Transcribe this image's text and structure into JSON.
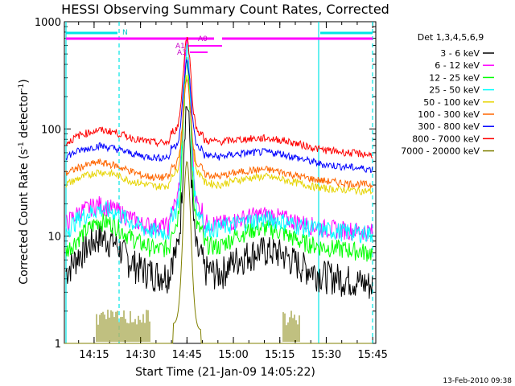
{
  "chart_data": {
    "type": "line",
    "title": "HESSI Observing Summary Count Rates, Corrected",
    "xlabel": "Start Time (21-Jan-09 14:05:22)",
    "ylabel": "Corrected Count Rate (s",
    "ylabel_sup1": "-1",
    "ylabel_mid": " detector",
    "ylabel_sup2": "-1",
    "ylabel_end": ")",
    "ylog": true,
    "ylim": [
      1,
      1000
    ],
    "xlim_minutes": [
      0,
      100.6
    ],
    "x_tick_labels": [
      "14:15",
      "14:30",
      "14:45",
      "15:00",
      "15:15",
      "15:30",
      "15:45"
    ],
    "x_tick_minutes": [
      9.6,
      24.6,
      39.6,
      54.6,
      69.6,
      84.6,
      99.6
    ],
    "y_tick_labels": [
      "1",
      "10",
      "100",
      "1000"
    ],
    "y_tick_values": [
      1,
      10,
      100,
      1000
    ],
    "legend_title": "Det 1,3,4,5,6,9",
    "legend_position": "right",
    "timestamp": "13-Feb-2010 09:38",
    "flags": {
      "n_label": "N",
      "a0_label": "A0",
      "a1_label": "A1",
      "a3_label": "A3"
    },
    "series": [
      {
        "name": "3 - 6 keV",
        "color": "#000000",
        "values": [
          4.5,
          7,
          10,
          9,
          6,
          5,
          4.5,
          4.5,
          170,
          5,
          4.5,
          6,
          7,
          7.5,
          7,
          5.5,
          4.5,
          4,
          3.5
        ]
      },
      {
        "name": "6 - 12 keV",
        "color": "#ff00ff",
        "values": [
          13,
          17,
          20,
          18,
          15,
          13,
          12.5,
          12.5,
          620,
          13.5,
          13,
          14,
          15.5,
          16,
          15,
          13.5,
          12,
          11.5,
          11
        ]
      },
      {
        "name": "12 - 25 keV",
        "color": "#00ff00",
        "values": [
          7,
          10,
          14,
          13,
          10,
          8.5,
          7.5,
          8,
          400,
          8.5,
          8,
          10,
          11.5,
          12,
          11,
          9,
          8,
          7.5,
          7
        ]
      },
      {
        "name": "25 - 50 keV",
        "color": "#00ffff",
        "values": [
          11,
          15,
          18,
          17,
          14,
          12,
          11,
          11,
          560,
          12,
          12,
          13,
          14,
          14.5,
          14,
          12.5,
          11.5,
          11,
          10.5
        ]
      },
      {
        "name": "50 - 100 keV",
        "color": "#e6d400",
        "values": [
          30,
          35,
          40,
          38,
          33,
          31,
          29,
          30,
          300,
          32,
          30,
          33,
          35,
          36,
          34,
          31,
          28,
          27,
          26
        ]
      },
      {
        "name": "100 - 300 keV",
        "color": "#ff6600",
        "values": [
          38,
          44,
          49,
          46,
          41,
          37,
          35,
          36,
          280,
          38,
          36,
          39,
          41,
          42,
          40,
          36,
          33,
          31,
          30
        ]
      },
      {
        "name": "300 - 800 keV",
        "color": "#0000ff",
        "values": [
          55,
          63,
          70,
          66,
          60,
          56,
          54,
          55,
          420,
          57,
          55,
          58,
          60,
          61,
          59,
          53,
          47,
          44,
          42
        ]
      },
      {
        "name": "800 - 7000 keV",
        "color": "#ff0000",
        "values": [
          72,
          88,
          98,
          94,
          84,
          78,
          74,
          75,
          700,
          78,
          76,
          79,
          81,
          82,
          79,
          72,
          64,
          60,
          57
        ]
      },
      {
        "name": "7000 - 20000 keV",
        "color": "#808000",
        "values": [
          1,
          1,
          1,
          1,
          1,
          1,
          1,
          1,
          50,
          1,
          1,
          1,
          1,
          1,
          1,
          1,
          1,
          1,
          1
        ]
      }
    ],
    "x_minutes": [
      0,
      5,
      11,
      16,
      21,
      25,
      30,
      34,
      39.6,
      45,
      50,
      55,
      60,
      65,
      70,
      76,
      83,
      92,
      100
    ]
  }
}
